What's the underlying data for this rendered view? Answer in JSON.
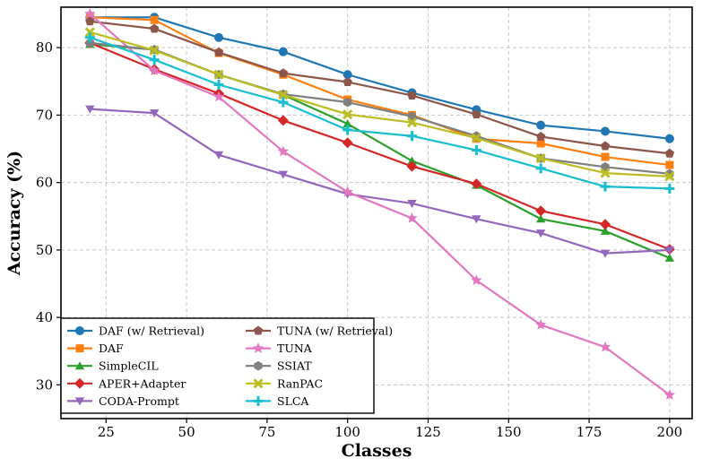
{
  "chart_data": {
    "type": "line",
    "title": "",
    "xlabel": "Classes",
    "ylabel": "Accuracy (%)",
    "xlim": [
      11,
      207
    ],
    "ylim": [
      25,
      86
    ],
    "xticks": [
      25,
      50,
      75,
      100,
      125,
      150,
      175,
      200
    ],
    "yticks": [
      30,
      40,
      50,
      60,
      70,
      80
    ],
    "grid": true,
    "legend_position": "lower-left",
    "x": [
      20,
      40,
      60,
      80,
      100,
      120,
      140,
      160,
      180,
      200
    ],
    "series": [
      {
        "name": "DAF (w/ Retrieval)",
        "color": "#1f77b4",
        "marker": "circle",
        "values": [
          84.5,
          84.5,
          81.5,
          79.4,
          76.0,
          73.3,
          70.8,
          68.5,
          67.6,
          66.5
        ]
      },
      {
        "name": "DAF",
        "color": "#ff7f0e",
        "marker": "square",
        "values": [
          84.5,
          84.1,
          79.2,
          76.0,
          72.3,
          70.0,
          66.5,
          65.8,
          63.8,
          62.6
        ]
      },
      {
        "name": "SimpleCIL",
        "color": "#2ca02c",
        "marker": "triangle-up",
        "values": [
          80.5,
          79.7,
          76.0,
          73.0,
          68.7,
          63.2,
          59.6,
          54.6,
          52.8,
          48.8
        ]
      },
      {
        "name": "APER+Adapter",
        "color": "#d62728",
        "marker": "diamond",
        "values": [
          80.7,
          76.8,
          73.2,
          69.2,
          65.9,
          62.4,
          59.8,
          55.8,
          53.8,
          50.1
        ]
      },
      {
        "name": "CODA-Prompt",
        "color": "#9467bd",
        "marker": "triangle-down",
        "values": [
          70.9,
          70.3,
          64.1,
          61.2,
          58.3,
          56.9,
          54.6,
          52.5,
          49.5,
          50.0
        ]
      },
      {
        "name": "TUNA (w/ Retrieval)",
        "color": "#8c564b",
        "marker": "pentagon",
        "values": [
          83.9,
          82.8,
          79.3,
          76.2,
          74.9,
          72.9,
          70.1,
          66.8,
          65.4,
          64.3
        ]
      },
      {
        "name": "TUNA",
        "color": "#e377c2",
        "marker": "star",
        "values": [
          85.0,
          76.6,
          72.7,
          64.6,
          58.6,
          54.7,
          45.5,
          38.9,
          35.6,
          28.5
        ]
      },
      {
        "name": "SSIAT",
        "color": "#7f7f7f",
        "marker": "hexagon",
        "values": [
          80.7,
          79.7,
          76.0,
          73.1,
          71.9,
          69.8,
          66.9,
          63.6,
          62.3,
          61.3
        ]
      },
      {
        "name": "RanPAC",
        "color": "#bcbd22",
        "marker": "x",
        "values": [
          82.3,
          79.6,
          76.0,
          73.0,
          70.1,
          68.9,
          66.6,
          63.6,
          61.4,
          60.9
        ]
      },
      {
        "name": "SLCA",
        "color": "#17becf",
        "marker": "plus",
        "values": [
          81.5,
          78.2,
          74.5,
          71.9,
          67.8,
          66.9,
          64.8,
          62.1,
          59.4,
          59.1
        ]
      }
    ],
    "legend_order": [
      "DAF (w/ Retrieval)",
      "TUNA (w/ Retrieval)",
      "DAF",
      "TUNA",
      "SimpleCIL",
      "SSIAT",
      "APER+Adapter",
      "RanPAC",
      "CODA-Prompt",
      "SLCA"
    ]
  }
}
